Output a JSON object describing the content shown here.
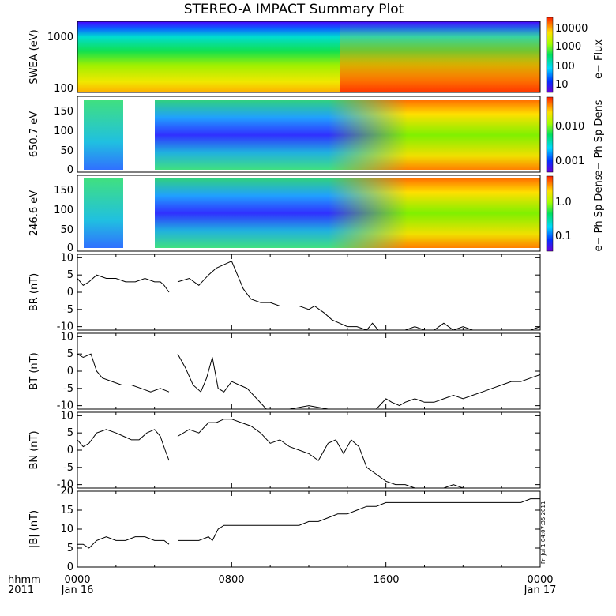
{
  "title": "STEREO-A IMPACT Summary Plot",
  "footer": {
    "row1_left": "hhmm",
    "row2_left": "2011",
    "x_ticks": [
      "0000",
      "0800",
      "1600",
      "0000"
    ],
    "x_dates": [
      "Jan 16",
      "",
      "",
      "Jan 17"
    ],
    "stamp": "Fri Jul 1 04:07:35 2011"
  },
  "spectrograms": [
    {
      "ylabel": "SWEA (eV)",
      "yticks": [
        "1000",
        "100"
      ],
      "colorbar_label": "e− Flux",
      "colorbar_ticks": [
        "10000",
        "1000",
        "100",
        "10"
      ]
    },
    {
      "ylabel": "650.7 eV",
      "yticks": [
        "150",
        "100",
        "50",
        "0"
      ],
      "colorbar_label": "e− Ph Sp Dens",
      "colorbar_ticks": [
        "0.010",
        "0.001"
      ]
    },
    {
      "ylabel": "246.6 eV",
      "yticks": [
        "150",
        "100",
        "50",
        "0"
      ],
      "colorbar_label": "e− Ph Sp Dens",
      "colorbar_ticks": [
        "1.0",
        "0.1"
      ]
    }
  ],
  "chart_data": [
    {
      "type": "line",
      "ylabel": "BR (nT)",
      "ylim": [
        -11,
        11
      ],
      "yticks": [
        "10",
        "5",
        "0",
        "-5",
        "-10"
      ],
      "x_unit": "hours",
      "xlim": [
        0,
        24
      ],
      "segments": [
        {
          "x": [
            0,
            0.3,
            0.6,
            1,
            1.5,
            2,
            2.5,
            3,
            3.5,
            4,
            4.3,
            4.5,
            4.75
          ],
          "y": [
            4,
            2,
            3,
            5,
            4,
            4,
            3,
            3,
            4,
            3,
            3,
            2,
            0
          ]
        },
        {
          "x": [
            5.2,
            5.8,
            6.3,
            6.8,
            7.2,
            7.6,
            8,
            8.3,
            8.6,
            9,
            9.5,
            10,
            10.5,
            11,
            11.5,
            12,
            12.3,
            12.8,
            13.2,
            13.6,
            14,
            14.5,
            15,
            15.3,
            15.6,
            16,
            16.5,
            17,
            17.5,
            18,
            18.5,
            19,
            19.5,
            20,
            20.5,
            21,
            21.5,
            22,
            22.5,
            23,
            23.5,
            24
          ],
          "y": [
            3,
            4,
            2,
            5,
            7,
            8,
            9,
            5,
            1,
            -2,
            -3,
            -3,
            -4,
            -4,
            -4,
            -5,
            -4,
            -6,
            -8,
            -9,
            -10,
            -10,
            -11,
            -9,
            -11,
            -11,
            -11,
            -11,
            -10,
            -11,
            -11,
            -9,
            -11,
            -10,
            -11,
            -11,
            -11,
            -11,
            -11,
            -11,
            -11,
            -10
          ]
        }
      ]
    },
    {
      "type": "line",
      "ylabel": "BT (nT)",
      "ylim": [
        -11,
        11
      ],
      "yticks": [
        "10",
        "5",
        "0",
        "-5",
        "-10"
      ],
      "x_unit": "hours",
      "xlim": [
        0,
        24
      ],
      "segments": [
        {
          "x": [
            0,
            0.3,
            0.7,
            1,
            1.3,
            1.8,
            2.3,
            2.8,
            3.3,
            3.8,
            4.3,
            4.75
          ],
          "y": [
            5,
            4,
            5,
            0,
            -2,
            -3,
            -4,
            -4,
            -5,
            -6,
            -5,
            -6
          ]
        },
        {
          "x": [
            5.2,
            5.6,
            6,
            6.4,
            6.7,
            7,
            7.3,
            7.6,
            8,
            8.4,
            8.8,
            9.3,
            9.8,
            10.3,
            11,
            12,
            13,
            14,
            15,
            15.5,
            16,
            16.3,
            16.7,
            17,
            17.5,
            18,
            18.5,
            19,
            19.5,
            20,
            20.5,
            21,
            21.5,
            22,
            22.5,
            23,
            23.5,
            24
          ],
          "y": [
            5,
            1,
            -4,
            -6,
            -2,
            4,
            -5,
            -6,
            -3,
            -4,
            -5,
            -8,
            -11,
            -11,
            -11,
            -10,
            -11,
            -11,
            -11,
            -11,
            -8,
            -9,
            -10,
            -9,
            -8,
            -9,
            -9,
            -8,
            -7,
            -8,
            -7,
            -6,
            -5,
            -4,
            -3,
            -3,
            -2,
            -1
          ]
        }
      ]
    },
    {
      "type": "line",
      "ylabel": "BN (nT)",
      "ylim": [
        -11,
        11
      ],
      "yticks": [
        "10",
        "5",
        "0",
        "-5",
        "-10"
      ],
      "x_unit": "hours",
      "xlim": [
        0,
        24
      ],
      "segments": [
        {
          "x": [
            0,
            0.3,
            0.6,
            1,
            1.5,
            2,
            2.4,
            2.8,
            3.2,
            3.6,
            4,
            4.3,
            4.55,
            4.75
          ],
          "y": [
            3,
            1,
            2,
            5,
            6,
            5,
            4,
            3,
            3,
            5,
            6,
            4,
            0,
            -3
          ]
        },
        {
          "x": [
            5.2,
            5.8,
            6.3,
            6.8,
            7.2,
            7.6,
            8,
            8.5,
            9,
            9.5,
            10,
            10.5,
            11,
            11.5,
            12,
            12.5,
            13,
            13.4,
            13.8,
            14.2,
            14.6,
            15,
            15.5,
            16,
            16.5,
            17,
            17.5,
            18,
            18.5,
            19,
            19.5,
            20,
            24
          ],
          "y": [
            4,
            6,
            5,
            8,
            8,
            9,
            9,
            8,
            7,
            5,
            2,
            3,
            1,
            0,
            -1,
            -3,
            2,
            3,
            -1,
            3,
            1,
            -5,
            -7,
            -9,
            -10,
            -10,
            -11,
            -11,
            -11,
            -11,
            -10,
            -11,
            -11
          ]
        }
      ]
    },
    {
      "type": "line",
      "ylabel": "|B| (nT)",
      "ylim": [
        0,
        20
      ],
      "yticks": [
        "20",
        "15",
        "10",
        "5",
        "0"
      ],
      "x_unit": "hours",
      "xlim": [
        0,
        24
      ],
      "segments": [
        {
          "x": [
            0,
            0.3,
            0.6,
            1,
            1.5,
            2,
            2.5,
            3,
            3.5,
            4,
            4.5,
            4.75
          ],
          "y": [
            6,
            6,
            5,
            7,
            8,
            7,
            7,
            8,
            8,
            7,
            7,
            6
          ]
        },
        {
          "x": [
            5.2,
            5.8,
            6.3,
            6.8,
            7,
            7.3,
            7.6,
            8,
            8.5,
            9,
            9.5,
            10,
            10.5,
            11,
            11.5,
            12,
            12.5,
            13,
            13.5,
            14,
            14.5,
            15,
            15.5,
            16,
            16.5,
            17,
            17.5,
            18,
            18.5,
            19,
            19.5,
            20,
            20.5,
            21,
            21.5,
            22,
            22.5,
            23,
            23.5,
            24
          ],
          "y": [
            7,
            7,
            7,
            8,
            7,
            10,
            11,
            11,
            11,
            11,
            11,
            11,
            11,
            11,
            11,
            12,
            12,
            13,
            14,
            14,
            15,
            16,
            16,
            17,
            17,
            17,
            17,
            17,
            17,
            17,
            17,
            17,
            17,
            17,
            17,
            17,
            17,
            17,
            18,
            18
          ]
        }
      ]
    }
  ]
}
